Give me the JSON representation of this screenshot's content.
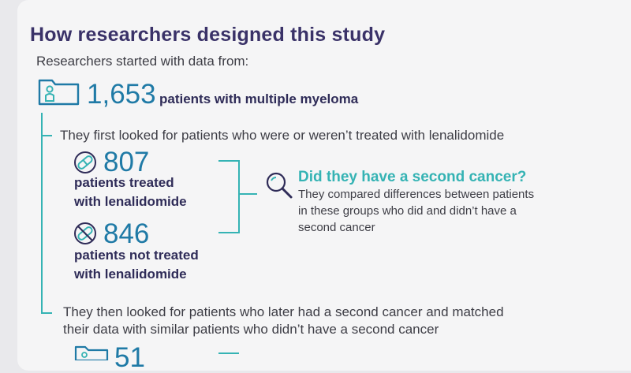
{
  "heading": "How researchers designed this study",
  "intro": "Researchers started with data from:",
  "total": {
    "count": "1,653",
    "label": "patients with multiple myeloma",
    "icon": "patient-folder-icon"
  },
  "step1": "They first looked for patients who were or weren’t treated with lenalidomide",
  "treated": {
    "count": "807",
    "label_line1": "patients treated",
    "label_line2": "with lenalidomide",
    "icon": "pill-icon"
  },
  "not_treated": {
    "count": "846",
    "label_line1": "patients not treated",
    "label_line2": "with lenalidomide",
    "icon": "no-pill-icon"
  },
  "question": {
    "heading": "Did they have a second cancer?",
    "line1": "They compared differences between patients",
    "line2": "in these groups who did and didn’t have a",
    "line3": "second cancer",
    "icon": "magnifier-icon"
  },
  "step2": {
    "line1": "They then looked for patients who later had a second cancer and matched",
    "line2": "their data with similar patients who didn’t have a second cancer"
  },
  "partial_count": "51",
  "colors": {
    "title": "#3a3268",
    "accent": "#35b3b4",
    "number": "#1f7aa6",
    "body": "#3d3d45",
    "card": "#f5f5f6"
  }
}
